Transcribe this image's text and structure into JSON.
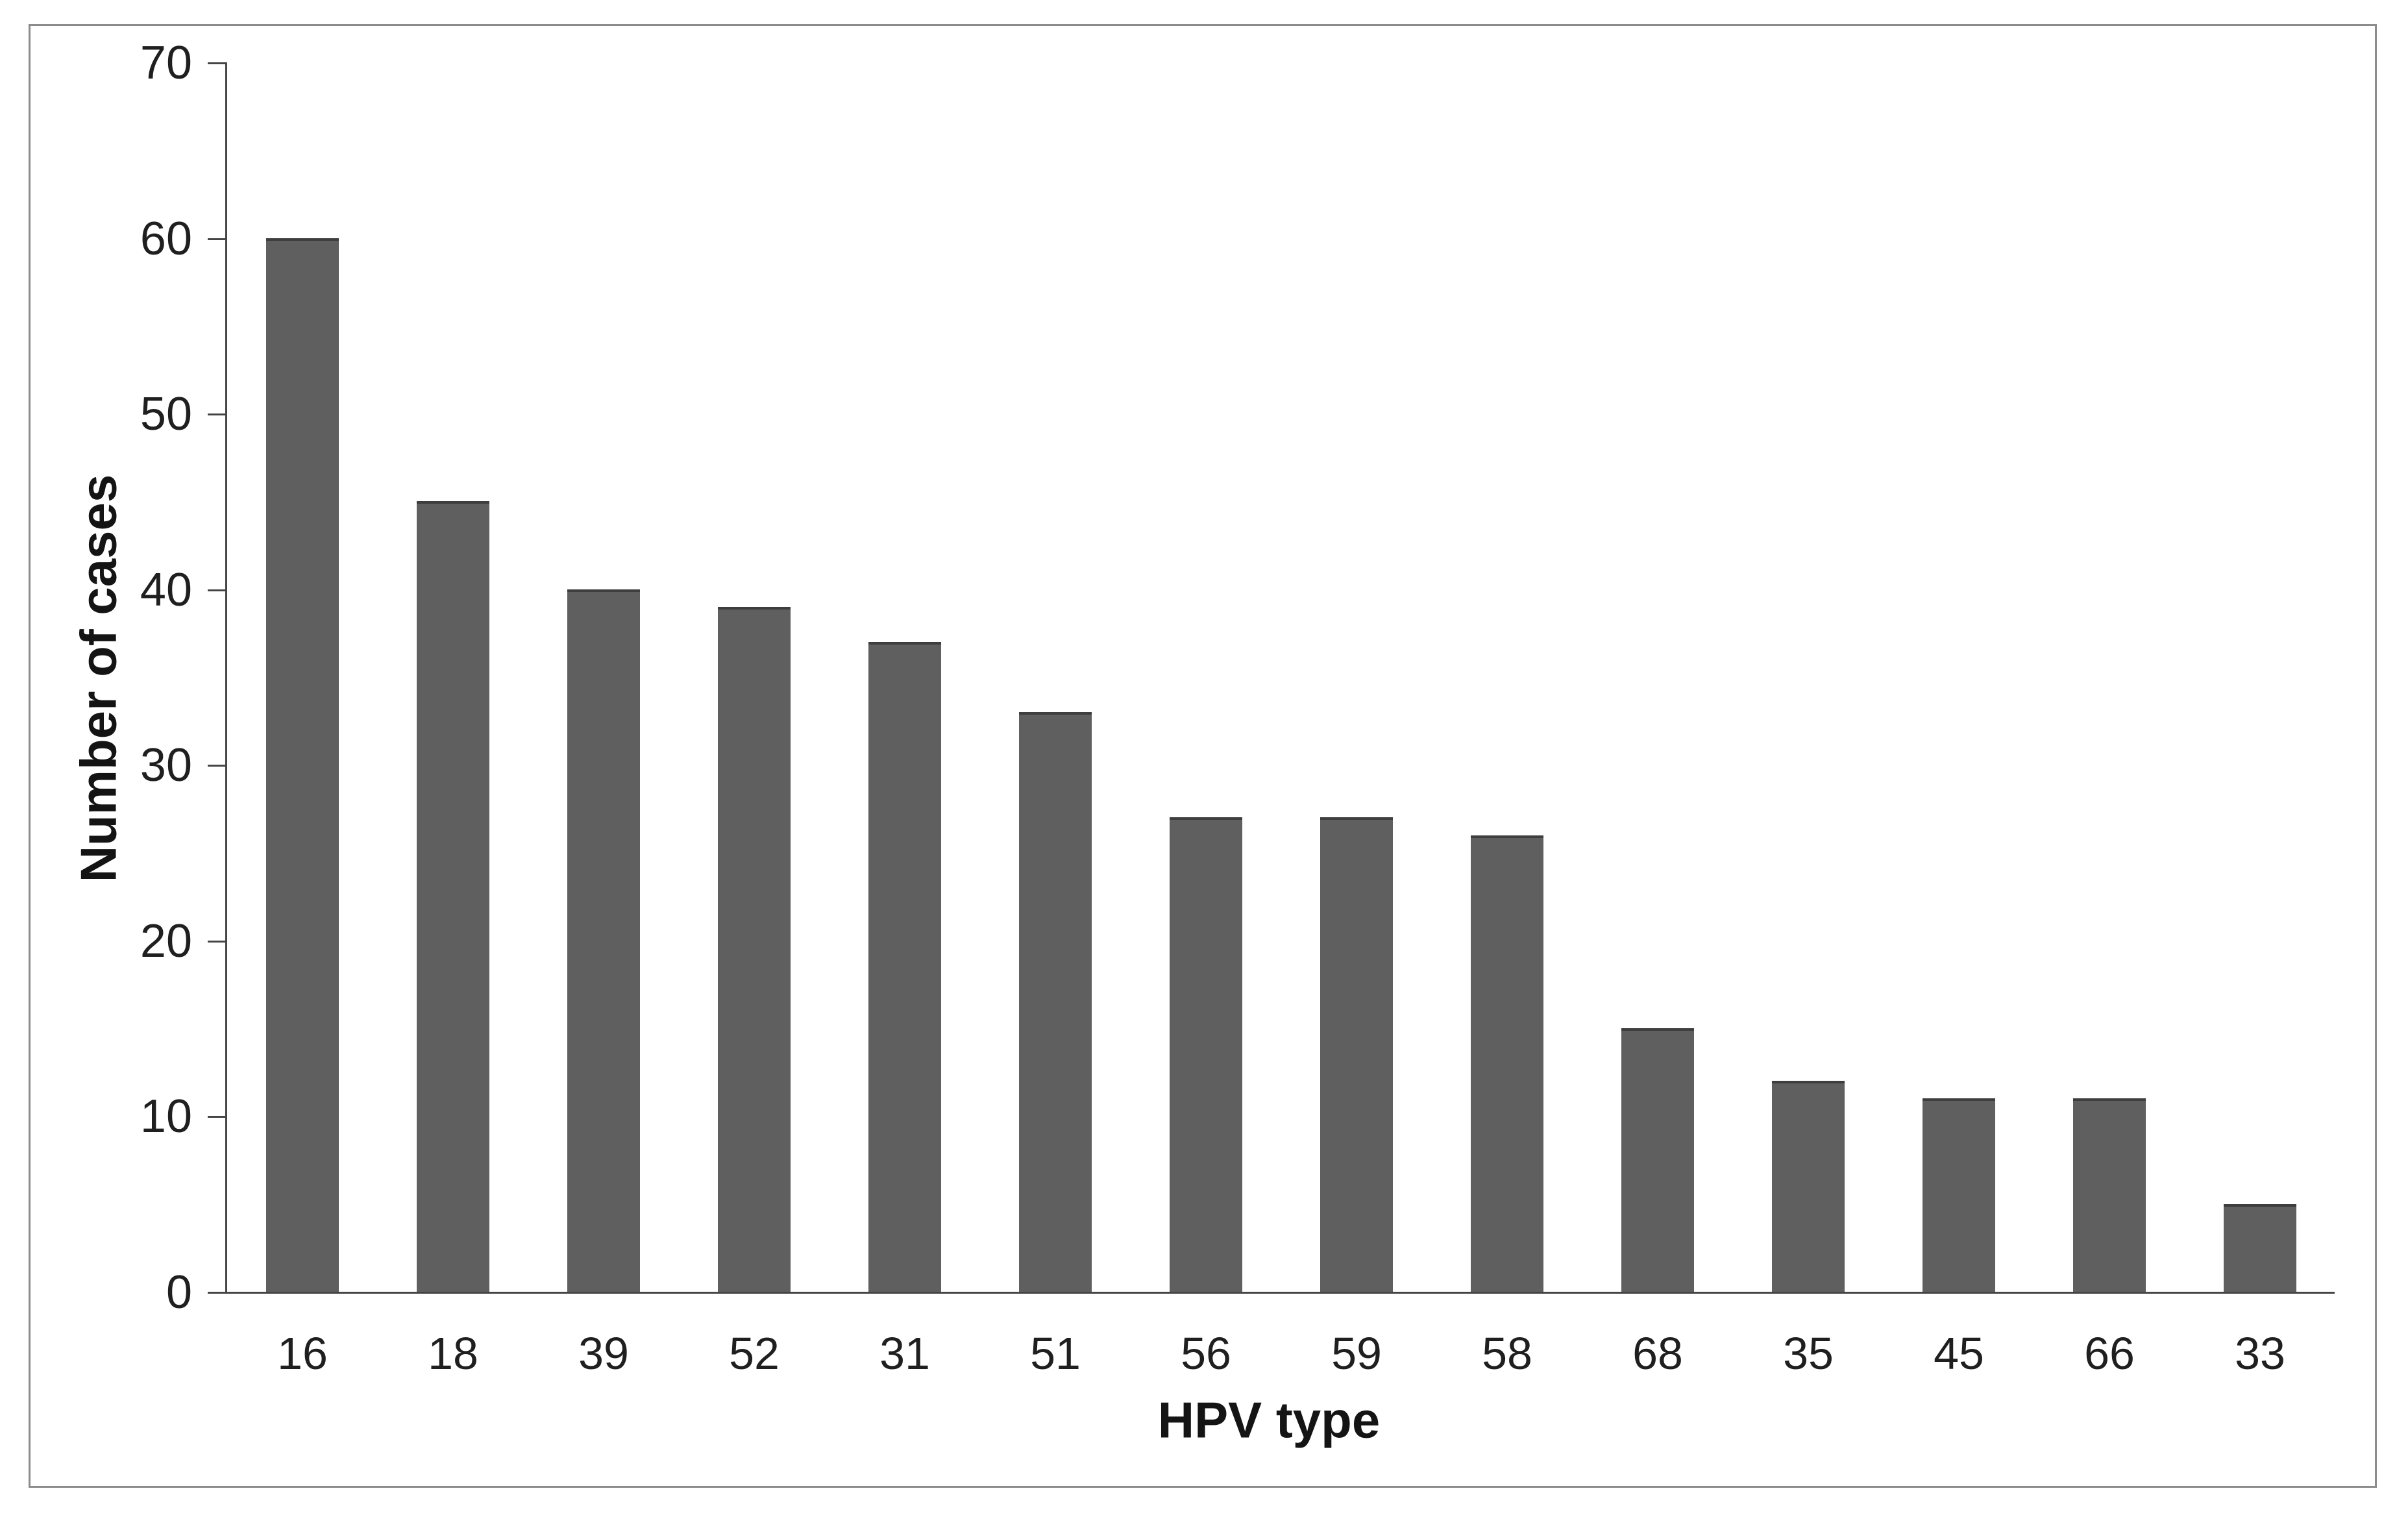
{
  "figure": {
    "background_color": "#ffffff",
    "frame_border_color": "#8c8c8c"
  },
  "chart_data": {
    "type": "bar",
    "title": "",
    "categories": [
      "16",
      "18",
      "39",
      "52",
      "31",
      "51",
      "56",
      "59",
      "58",
      "68",
      "35",
      "45",
      "66",
      "33"
    ],
    "values": [
      60,
      45,
      40,
      39,
      37,
      33,
      27,
      27,
      26,
      15,
      12,
      11,
      11,
      5
    ],
    "xlabel": "HPV type",
    "ylabel": "Number of cases",
    "ylim": [
      0,
      70
    ],
    "yticks": [
      0,
      10,
      20,
      30,
      40,
      50,
      60,
      70
    ],
    "grid": false,
    "legend": "none",
    "bar_color": "#5f5f5f",
    "bar_cap_color": "#3e3e3e",
    "axis_color": "#454545",
    "text_color": "#1f1f1f"
  }
}
